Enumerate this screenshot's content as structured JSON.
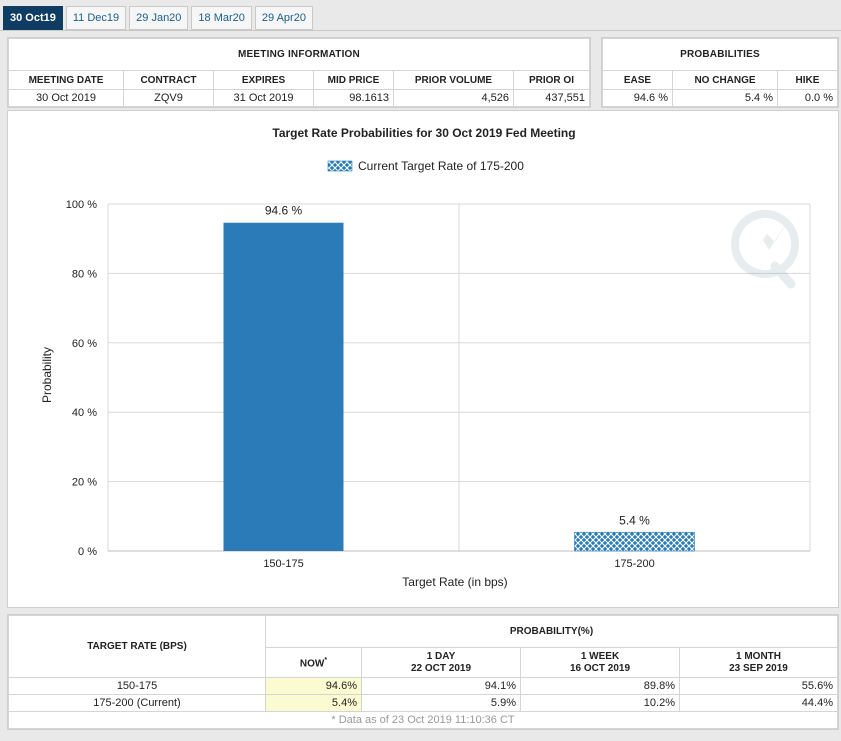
{
  "tabs": [
    "30 Oct19",
    "11 Dec19",
    "29 Jan20",
    "18 Mar20",
    "29 Apr20"
  ],
  "meeting": {
    "title": "MEETING INFORMATION",
    "headers": [
      "MEETING DATE",
      "CONTRACT",
      "EXPIRES",
      "MID PRICE",
      "PRIOR VOLUME",
      "PRIOR OI"
    ],
    "row": [
      "30 Oct 2019",
      "ZQV9",
      "31 Oct 2019",
      "98.1613",
      "4,526",
      "437,551"
    ]
  },
  "probabilities": {
    "title": "PROBABILITIES",
    "headers": [
      "EASE",
      "NO CHANGE",
      "HIKE"
    ],
    "row": [
      "94.6 %",
      "5.4 %",
      "0.0 %"
    ]
  },
  "chart_data": {
    "type": "bar",
    "title": "Target Rate Probabilities for 30 Oct 2019 Fed Meeting",
    "legend": "Current Target Rate of 175-200",
    "legend_position": "top-center",
    "xlabel": "Target Rate (in bps)",
    "ylabel": "Probability",
    "categories": [
      "150-175",
      "175-200"
    ],
    "values": [
      94.6,
      5.4
    ],
    "value_labels": [
      "94.6 %",
      "5.4 %"
    ],
    "ylim": [
      0,
      100
    ],
    "yticks": [
      "0 %",
      "20 %",
      "40 %",
      "60 %",
      "80 %",
      "100 %"
    ],
    "grid": true,
    "colors": {
      "bar": "#2b7bb9",
      "current_hatch": "#2b7bb9"
    }
  },
  "bottom_table": {
    "target_header": "TARGET RATE (BPS)",
    "prob_header": "PROBABILITY(%)",
    "sub": [
      {
        "l1": "NOW",
        "l2": "",
        "sup": "*"
      },
      {
        "l1": "1 DAY",
        "l2": "22 OCT 2019"
      },
      {
        "l1": "1 WEEK",
        "l2": "16 OCT 2019"
      },
      {
        "l1": "1 MONTH",
        "l2": "23 SEP 2019"
      }
    ],
    "rows": [
      {
        "rate": "150-175",
        "vals": [
          "94.6%",
          "94.1%",
          "89.8%",
          "55.6%"
        ]
      },
      {
        "rate": "175-200 (Current)",
        "vals": [
          "5.4%",
          "5.9%",
          "10.2%",
          "44.4%"
        ]
      }
    ],
    "footnote": "* Data as of 23 Oct 2019 11:10:36 CT"
  }
}
